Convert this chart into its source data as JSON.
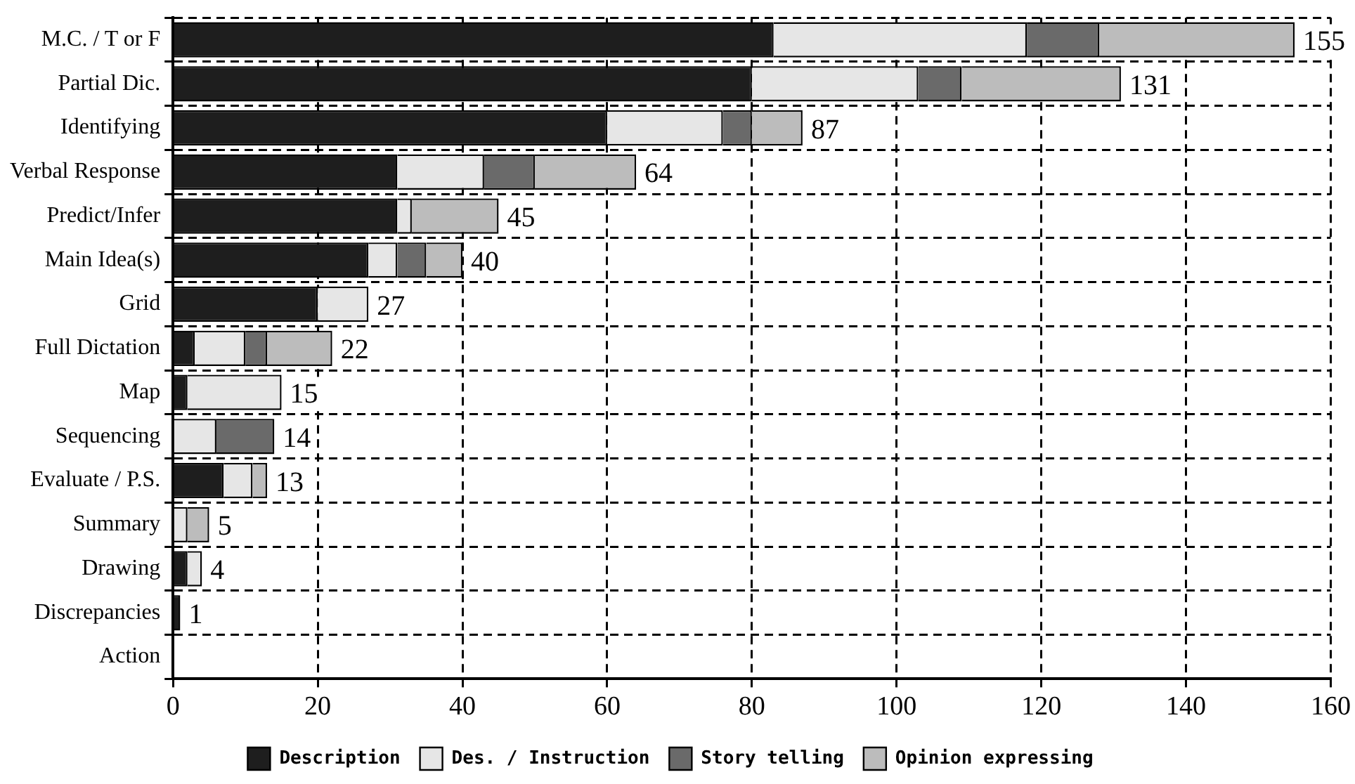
{
  "chart_data": {
    "type": "bar",
    "orientation": "horizontal",
    "stacked": true,
    "categories": [
      "M.C. / T or F",
      "Partial Dic.",
      "Identifying",
      "Verbal Response",
      "Predict/Infer",
      "Main Idea(s)",
      "Grid",
      "Full Dictation",
      "Map",
      "Sequencing",
      "Evaluate / P.S.",
      "Summary",
      "Drawing",
      "Discrepancies",
      "Action"
    ],
    "series": [
      {
        "name": "Description",
        "color": "#1e1e1e",
        "values": [
          83,
          80,
          60,
          31,
          31,
          27,
          20,
          3,
          2,
          null,
          7,
          null,
          2,
          1,
          null
        ]
      },
      {
        "name": "Des. / Instruction",
        "color": "#e6e6e6",
        "values": [
          35,
          23,
          16,
          12,
          2,
          4,
          7,
          7,
          13,
          6,
          4,
          2,
          2,
          null,
          null
        ]
      },
      {
        "name": "Story telling",
        "color": "#6a6a6a",
        "values": [
          10,
          6,
          4,
          7,
          null,
          4,
          null,
          3,
          null,
          8,
          null,
          null,
          null,
          null,
          null
        ]
      },
      {
        "name": "Opinion expressing",
        "color": "#bcbcbc",
        "values": [
          27,
          22,
          7,
          14,
          12,
          5,
          null,
          9,
          null,
          null,
          2,
          3,
          null,
          null,
          null
        ]
      }
    ],
    "totals": [
      "155",
      "131",
      "87",
      "64",
      "45",
      "40",
      "27",
      "22",
      "15",
      "14",
      "13",
      "5",
      "4",
      "1",
      null
    ],
    "xlim": [
      0,
      160
    ],
    "xticks": [
      0,
      20,
      40,
      60,
      80,
      100,
      120,
      140,
      160
    ],
    "grid": true,
    "legend": "bottom"
  }
}
